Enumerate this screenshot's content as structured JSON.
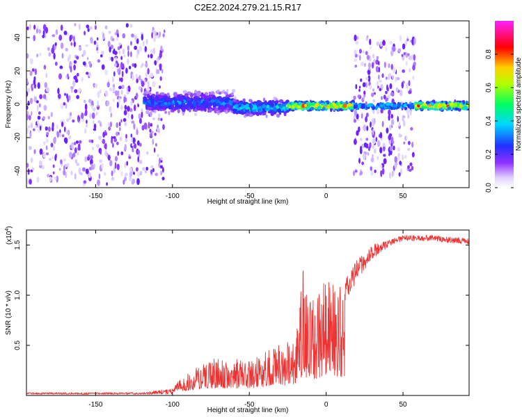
{
  "figure": {
    "title": "C2E2.2024.279.21.15.R17"
  },
  "chart_data": [
    {
      "type": "heatmap",
      "xlabel": "Height of straight line (km)",
      "ylabel": "Frequency (Hz)",
      "xlim": [
        -195,
        93
      ],
      "ylim": [
        -50,
        50
      ],
      "x_ticks": [
        "-150",
        "-100",
        "-50",
        "0",
        "50"
      ],
      "x_tick_values": [
        -150,
        -100,
        -50,
        0,
        50
      ],
      "y_ticks": [
        "40",
        "20",
        "0",
        "-20",
        "-40"
      ],
      "y_tick_values": [
        40,
        20,
        0,
        -20,
        -40
      ],
      "colorbar": {
        "label": "Normalized spectral amplitude",
        "range": [
          0.0,
          1.0
        ],
        "ticks": [
          "0.0",
          "0.2",
          "0.4",
          "0.6",
          "0.8"
        ],
        "tick_values": [
          0.0,
          0.2,
          0.4,
          0.6,
          0.8
        ],
        "colormap": [
          "#ffffff",
          "#d8c8ff",
          "#7a20ff",
          "#2030ff",
          "#00d8ff",
          "#00ff60",
          "#c0ff00",
          "#ffd000",
          "#ff0000",
          "#ff30ff"
        ]
      },
      "regions": [
        {
          "x": [
            -195,
            -120
          ],
          "freq_spread": 48,
          "level": "speckle-low"
        },
        {
          "x": [
            -120,
            -105
          ],
          "freq_spread": 45,
          "level": "speckle-low"
        },
        {
          "x": [
            -118,
            -60
          ],
          "freq_spread": 8,
          "center_freq": 1,
          "level": "mid"
        },
        {
          "x": [
            -60,
            -25
          ],
          "freq_spread": 6,
          "center_freq": -2,
          "level": "mid-high"
        },
        {
          "x": [
            -25,
            18
          ],
          "freq_spread": 3,
          "center_freq": -1,
          "level": "high"
        },
        {
          "x": [
            18,
            58
          ],
          "freq_spread": 42,
          "center_freq": -1,
          "level": "speckle-with-line"
        },
        {
          "x": [
            58,
            93
          ],
          "freq_spread": 3,
          "center_freq": -1,
          "level": "high"
        }
      ]
    },
    {
      "type": "line",
      "xlabel": "Height of straight line (km)",
      "ylabel": "SNR (10 * v/v)",
      "y_multiplier": "(x10",
      "y_multiplier_exp": "4",
      "y_multiplier_close": ")",
      "xlim": [
        -195,
        93
      ],
      "ylim": [
        0.0,
        1.65
      ],
      "x_ticks": [
        "-150",
        "-100",
        "-50",
        "0",
        "50"
      ],
      "x_tick_values": [
        -150,
        -100,
        -50,
        0,
        50
      ],
      "y_ticks": [
        "1.5",
        "1.0",
        "0.5"
      ],
      "y_tick_values": [
        1.5,
        1.0,
        0.5
      ],
      "series": [
        {
          "color": "#ee3333",
          "envelope_x": [
            -195,
            -120,
            -105,
            -100,
            -95,
            -85,
            -75,
            -65,
            -55,
            -45,
            -35,
            -25,
            -18,
            -15,
            -12,
            -5,
            0,
            10,
            20,
            30,
            40,
            50,
            60,
            70,
            80,
            93
          ],
          "envelope_y": [
            0.02,
            0.02,
            0.05,
            0.06,
            0.15,
            0.25,
            0.35,
            0.35,
            0.35,
            0.38,
            0.45,
            0.55,
            0.7,
            1.35,
            0.9,
            1.0,
            1.15,
            1.1,
            1.35,
            1.5,
            1.55,
            1.6,
            1.6,
            1.6,
            1.58,
            1.57
          ]
        }
      ]
    }
  ]
}
